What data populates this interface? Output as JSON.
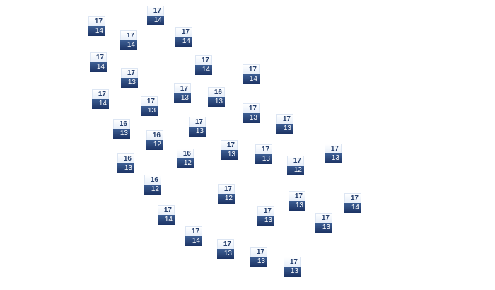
{
  "markers": [
    {
      "top": "17",
      "bottom": "14"
    },
    {
      "top": "17",
      "bottom": "14"
    },
    {
      "top": "17",
      "bottom": "14"
    },
    {
      "top": "17",
      "bottom": "14"
    },
    {
      "top": "17",
      "bottom": "14"
    },
    {
      "top": "17",
      "bottom": "14"
    },
    {
      "top": "17",
      "bottom": "14"
    },
    {
      "top": "17",
      "bottom": "13"
    },
    {
      "top": "17",
      "bottom": "14"
    },
    {
      "top": "17",
      "bottom": "13"
    },
    {
      "top": "16",
      "bottom": "13"
    },
    {
      "top": "17",
      "bottom": "13"
    },
    {
      "top": "17",
      "bottom": "13"
    },
    {
      "top": "17",
      "bottom": "13"
    },
    {
      "top": "16",
      "bottom": "13"
    },
    {
      "top": "17",
      "bottom": "13"
    },
    {
      "top": "16",
      "bottom": "12"
    },
    {
      "top": "17",
      "bottom": "13"
    },
    {
      "top": "16",
      "bottom": "12"
    },
    {
      "top": "17",
      "bottom": "13"
    },
    {
      "top": "17",
      "bottom": "13"
    },
    {
      "top": "16",
      "bottom": "13"
    },
    {
      "top": "17",
      "bottom": "12"
    },
    {
      "top": "16",
      "bottom": "12"
    },
    {
      "top": "17",
      "bottom": "12"
    },
    {
      "top": "17",
      "bottom": "13"
    },
    {
      "top": "17",
      "bottom": "14"
    },
    {
      "top": "17",
      "bottom": "14"
    },
    {
      "top": "17",
      "bottom": "13"
    },
    {
      "top": "17",
      "bottom": "13"
    },
    {
      "top": "17",
      "bottom": "14"
    },
    {
      "top": "17",
      "bottom": "13"
    },
    {
      "top": "17",
      "bottom": "13"
    },
    {
      "top": "17",
      "bottom": "13"
    }
  ],
  "colors": {
    "top_text": "#26406e",
    "bottom_bg": "#1c3364",
    "bottom_text": "#ffffff"
  }
}
